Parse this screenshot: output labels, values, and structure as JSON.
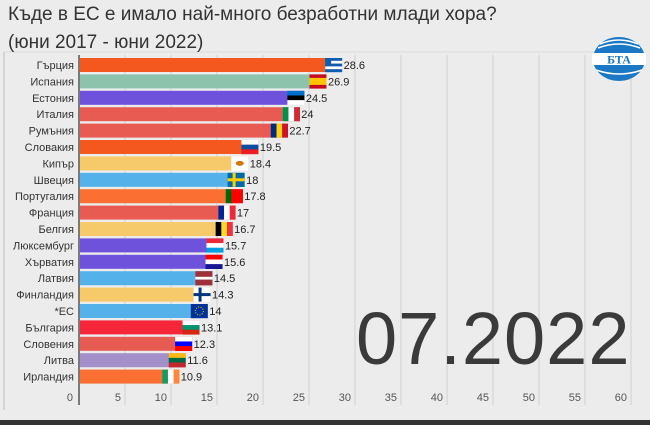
{
  "title_line1": "Къде в ЕС е имало най-много безработни млади хора?",
  "title_line2": "(юни 2017 - юни 2022)",
  "date_label": "07.2022",
  "logo_text": "БТА",
  "chart_data": {
    "type": "bar",
    "orientation": "horizontal",
    "title": "Къде в ЕС е имало най-много безработни млади хора? (юни 2017 - юни 2022)",
    "xlim": [
      0,
      60
    ],
    "xticks": [
      0,
      5,
      10,
      15,
      20,
      25,
      30,
      35,
      40,
      45,
      50,
      55,
      60
    ],
    "grid": true,
    "categories": [
      "Гърция",
      "Испания",
      "Естония",
      "Италия",
      "Румъния",
      "Словакия",
      "Кипър",
      "Швеция",
      "Португалия",
      "Франция",
      "Белгия",
      "Люксембург",
      "Хърватия",
      "Латвия",
      "Финландия",
      "*ЕС",
      "България",
      "Словения",
      "Литва",
      "Ирландия"
    ],
    "values": [
      28.6,
      26.9,
      24.5,
      24,
      22.7,
      19.5,
      18.4,
      18,
      17.8,
      17,
      16.7,
      15.7,
      15.6,
      14.5,
      14.3,
      14,
      13.1,
      12.3,
      11.6,
      10.9
    ],
    "value_labels": [
      "28.6",
      "26.9",
      "24.5",
      "24",
      "22.7",
      "19.5",
      "18.4",
      "18",
      "17.8",
      "17",
      "16.7",
      "15.7",
      "15.6",
      "14.5",
      "14.3",
      "14",
      "13.1",
      "12.3",
      "11.6",
      "10.9"
    ],
    "colors": [
      "#f4581f",
      "#8dc3ac",
      "#6e52db",
      "#e85b53",
      "#e85b53",
      "#f4581f",
      "#f6c96b",
      "#55b1ea",
      "#fb6f33",
      "#e85b53",
      "#f6c96b",
      "#6e52db",
      "#6e52db",
      "#55b1ea",
      "#f6c96b",
      "#55b1ea",
      "#f5253a",
      "#e85b53",
      "#a38fc9",
      "#fb6f33"
    ],
    "flags": [
      "greece-flag-icon",
      "spain-flag-icon",
      "estonia-flag-icon",
      "italy-flag-icon",
      "romania-flag-icon",
      "slovakia-flag-icon",
      "cyprus-flag-icon",
      "sweden-flag-icon",
      "portugal-flag-icon",
      "france-flag-icon",
      "belgium-flag-icon",
      "luxembourg-flag-icon",
      "croatia-flag-icon",
      "latvia-flag-icon",
      "finland-flag-icon",
      "eu-flag-icon",
      "bulgaria-flag-icon",
      "slovenia-flag-icon",
      "lithuania-flag-icon",
      "ireland-flag-icon"
    ]
  }
}
